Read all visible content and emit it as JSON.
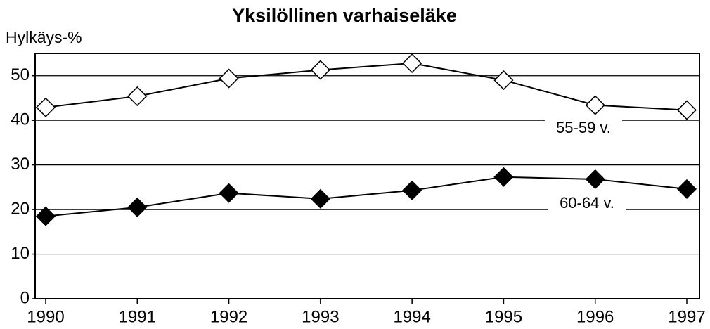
{
  "chart_data": {
    "type": "line",
    "title": "Yksilöllinen varhaiseläke",
    "y_label": "Hylkäys-%",
    "categories": [
      "1990",
      "1991",
      "1992",
      "1993",
      "1994",
      "1995",
      "1996",
      "1997"
    ],
    "series": [
      {
        "name": "55-59 v.",
        "color": "#000000",
        "marker": "open-diamond",
        "values": [
          42.9,
          45.4,
          49.4,
          51.3,
          52.8,
          49,
          43.4,
          42.3
        ]
      },
      {
        "name": "60-64 v.",
        "color": "#000000",
        "marker": "filled-diamond",
        "values": [
          18.5,
          20.5,
          23.7,
          22.4,
          24.3,
          27.3,
          26.8,
          24.6
        ]
      }
    ],
    "ylim": [
      0,
      55
    ],
    "yticks": [
      0,
      10,
      20,
      30,
      40,
      50
    ],
    "grid": true
  }
}
